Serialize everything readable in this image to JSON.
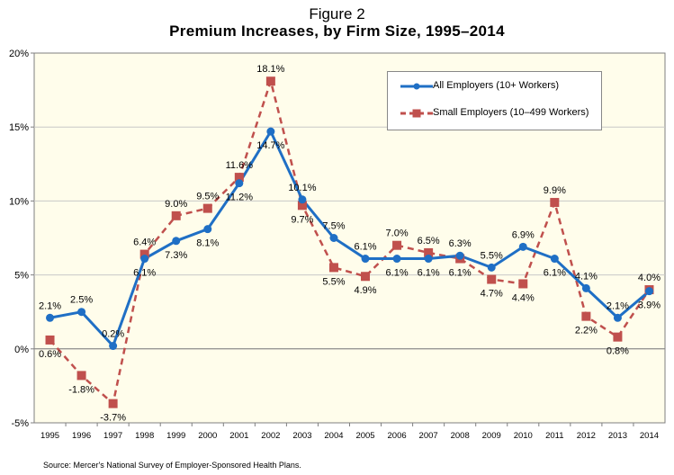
{
  "figure_label": "Figure 2",
  "source_note": "Source: Mercer's National Survey of Employer-Sponsored Health Plans.",
  "colors": {
    "all_employers": "#1f6fc5",
    "small_employers": "#c0504d",
    "plot_background": "#fffdeb",
    "grid": "#c8c8c8"
  },
  "chart_data": {
    "type": "line",
    "title": "Premium Increases, by Firm Size, 1995–2014",
    "xlabel": "",
    "ylabel": "",
    "ylim": [
      -5,
      20
    ],
    "yticks": [
      -5,
      0,
      5,
      10,
      15,
      20
    ],
    "ytick_labels": [
      "-5%",
      "0%",
      "5%",
      "10%",
      "15%",
      "20%"
    ],
    "grid": "horizontal",
    "legend_position": "top-right",
    "categories": [
      "1995",
      "1996",
      "1997",
      "1998",
      "1999",
      "2000",
      "2001",
      "2002",
      "2003",
      "2004",
      "2005",
      "2006",
      "2007",
      "2008",
      "2009",
      "2010",
      "2011",
      "2012",
      "2013",
      "2014"
    ],
    "series": [
      {
        "name": "All Employers (10+ Workers)",
        "style": "solid line, circle markers",
        "values": [
          2.1,
          2.5,
          0.2,
          6.1,
          7.3,
          8.1,
          11.2,
          14.7,
          10.1,
          7.5,
          6.1,
          6.1,
          6.1,
          6.3,
          5.5,
          6.9,
          6.1,
          4.1,
          2.1,
          3.9
        ],
        "labels": [
          "2.1%",
          "2.5%",
          "0.2%",
          "6.1%",
          "7.3%",
          "8.1%",
          "11.2%",
          "14.7%",
          "10.1%",
          "7.5%",
          "6.1%",
          "6.1%",
          "6.1%",
          "6.3%",
          "5.5%",
          "6.9%",
          "6.1%",
          "4.1%",
          "2.1%",
          "3.9%"
        ]
      },
      {
        "name": "Small Employers (10–499 Workers)",
        "style": "dashed line, square markers",
        "values": [
          0.6,
          -1.8,
          -3.7,
          6.4,
          9.0,
          9.5,
          11.6,
          18.1,
          9.7,
          5.5,
          4.9,
          7.0,
          6.5,
          6.1,
          4.7,
          4.4,
          9.9,
          2.2,
          0.8,
          4.0
        ],
        "labels": [
          "0.6%",
          "-1.8%",
          "-3.7%",
          "6.4%",
          "9.0%",
          "9.5%",
          "11.6%",
          "18.1%",
          "9.7%",
          "5.5%",
          "4.9%",
          "7.0%",
          "6.5%",
          "6.1%",
          "4.7%",
          "4.4%",
          "9.9%",
          "2.2%",
          "0.8%",
          "4.0%"
        ]
      }
    ]
  }
}
